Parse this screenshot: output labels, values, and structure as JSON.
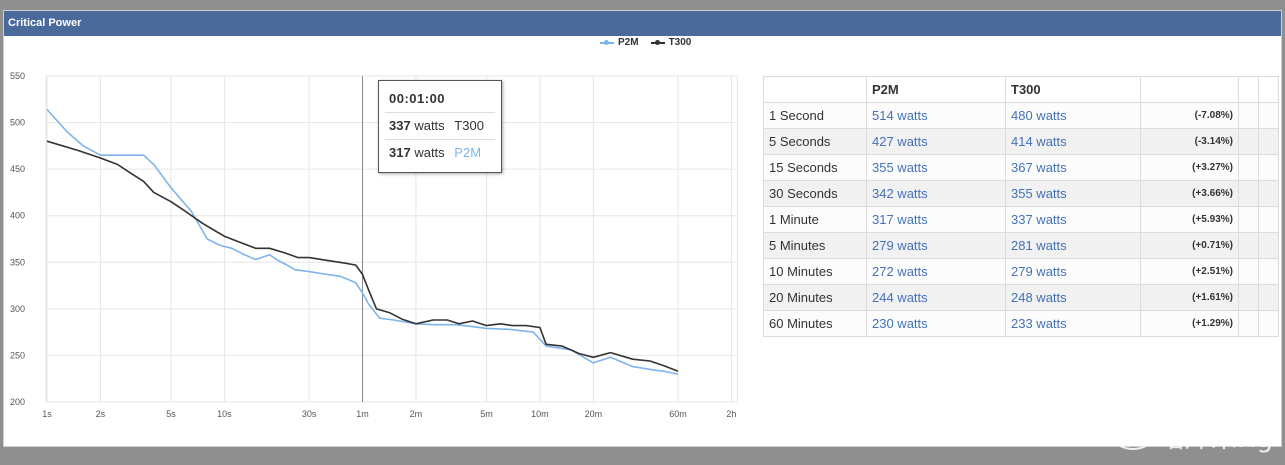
{
  "panel": {
    "title": "Critical Power"
  },
  "chart_data": {
    "type": "line",
    "title": "",
    "x_scale": "log",
    "y_range": [
      200,
      550
    ],
    "y_ticks": [
      550,
      500,
      450,
      400,
      350,
      300,
      250,
      200
    ],
    "x_tick_labels": [
      {
        "label": "1s",
        "sec": 1
      },
      {
        "label": "2s",
        "sec": 2
      },
      {
        "label": "5s",
        "sec": 5
      },
      {
        "label": "10s",
        "sec": 10
      },
      {
        "label": "30s",
        "sec": 30
      },
      {
        "label": "1m",
        "sec": 60
      },
      {
        "label": "2m",
        "sec": 120
      },
      {
        "label": "5m",
        "sec": 300
      },
      {
        "label": "10m",
        "sec": 600
      },
      {
        "label": "20m",
        "sec": 1200
      },
      {
        "label": "60m",
        "sec": 3600
      },
      {
        "label": "2h",
        "sec": 7200
      }
    ],
    "series": [
      {
        "name": "P2M",
        "color": "#7cb5ec",
        "points": [
          [
            1,
            514
          ],
          [
            1.3,
            490
          ],
          [
            1.6,
            475
          ],
          [
            2,
            465
          ],
          [
            2.5,
            465
          ],
          [
            3.5,
            465
          ],
          [
            4,
            455
          ],
          [
            5,
            430
          ],
          [
            6.5,
            405
          ],
          [
            8,
            375
          ],
          [
            9.5,
            368
          ],
          [
            11,
            365
          ],
          [
            13,
            358
          ],
          [
            15,
            353
          ],
          [
            18,
            358
          ],
          [
            20,
            352
          ],
          [
            22,
            348
          ],
          [
            25,
            342
          ],
          [
            30,
            340
          ],
          [
            35,
            338
          ],
          [
            45,
            335
          ],
          [
            55,
            328
          ],
          [
            60,
            317
          ],
          [
            65,
            305
          ],
          [
            75,
            290
          ],
          [
            90,
            288
          ],
          [
            120,
            284
          ],
          [
            150,
            283
          ],
          [
            200,
            283
          ],
          [
            250,
            281
          ],
          [
            300,
            279
          ],
          [
            400,
            278
          ],
          [
            550,
            275
          ],
          [
            650,
            260
          ],
          [
            900,
            256
          ],
          [
            1200,
            242
          ],
          [
            1500,
            248
          ],
          [
            2000,
            238
          ],
          [
            2700,
            234
          ],
          [
            3000,
            233
          ],
          [
            3600,
            230
          ]
        ]
      },
      {
        "name": "T300",
        "color": "#333333",
        "points": [
          [
            1,
            480
          ],
          [
            1.5,
            470
          ],
          [
            2,
            462
          ],
          [
            2.5,
            455
          ],
          [
            3,
            445
          ],
          [
            3.5,
            437
          ],
          [
            4,
            425
          ],
          [
            5,
            415
          ],
          [
            6,
            405
          ],
          [
            7.5,
            392
          ],
          [
            9,
            383
          ],
          [
            10,
            378
          ],
          [
            12,
            372
          ],
          [
            15,
            365
          ],
          [
            18,
            365
          ],
          [
            22,
            360
          ],
          [
            26,
            355
          ],
          [
            30,
            355
          ],
          [
            38,
            352
          ],
          [
            48,
            349
          ],
          [
            55,
            347
          ],
          [
            60,
            337
          ],
          [
            65,
            320
          ],
          [
            72,
            300
          ],
          [
            85,
            296
          ],
          [
            100,
            289
          ],
          [
            120,
            284
          ],
          [
            150,
            288
          ],
          [
            180,
            288
          ],
          [
            210,
            284
          ],
          [
            250,
            287
          ],
          [
            300,
            282
          ],
          [
            360,
            284
          ],
          [
            420,
            282
          ],
          [
            500,
            282
          ],
          [
            600,
            280
          ],
          [
            650,
            262
          ],
          [
            800,
            260
          ],
          [
            1000,
            252
          ],
          [
            1200,
            248
          ],
          [
            1500,
            253
          ],
          [
            2000,
            246
          ],
          [
            2500,
            244
          ],
          [
            3000,
            239
          ],
          [
            3600,
            233
          ]
        ]
      }
    ],
    "tooltip": {
      "time": "00:01:00",
      "rows": [
        {
          "value": "337",
          "unit": "watts",
          "series": "T300",
          "color": "#333333"
        },
        {
          "value": "317",
          "unit": "watts",
          "series": "P2M",
          "color": "#7cb5ec"
        }
      ],
      "at_sec": 60
    }
  },
  "legend": [
    {
      "label": "P2M",
      "color": "#7cb5ec"
    },
    {
      "label": "T300",
      "color": "#333333"
    }
  ],
  "table": {
    "headers": [
      "",
      "P2M",
      "T300",
      "",
      ""
    ],
    "rows": [
      {
        "duration": "1 Second",
        "p2m": "514 watts",
        "t300": "480 watts",
        "pct": "(-7.08%)"
      },
      {
        "duration": "5 Seconds",
        "p2m": "427 watts",
        "t300": "414 watts",
        "pct": "(-3.14%)"
      },
      {
        "duration": "15 Seconds",
        "p2m": "355 watts",
        "t300": "367 watts",
        "pct": "(+3.27%)"
      },
      {
        "duration": "30 Seconds",
        "p2m": "342 watts",
        "t300": "355 watts",
        "pct": "(+3.66%)"
      },
      {
        "duration": "1 Minute",
        "p2m": "317 watts",
        "t300": "337 watts",
        "pct": "(+5.93%)"
      },
      {
        "duration": "5 Minutes",
        "p2m": "279 watts",
        "t300": "281 watts",
        "pct": "(+0.71%)"
      },
      {
        "duration": "10 Minutes",
        "p2m": "272 watts",
        "t300": "279 watts",
        "pct": "(+2.51%)"
      },
      {
        "duration": "20 Minutes",
        "p2m": "244 watts",
        "t300": "248 watts",
        "pct": "(+1.61%)"
      },
      {
        "duration": "60 Minutes",
        "p2m": "230 watts",
        "t300": "233 watts",
        "pct": "(+1.29%)"
      }
    ]
  },
  "watermark": {
    "text": "塔库米Hg"
  }
}
